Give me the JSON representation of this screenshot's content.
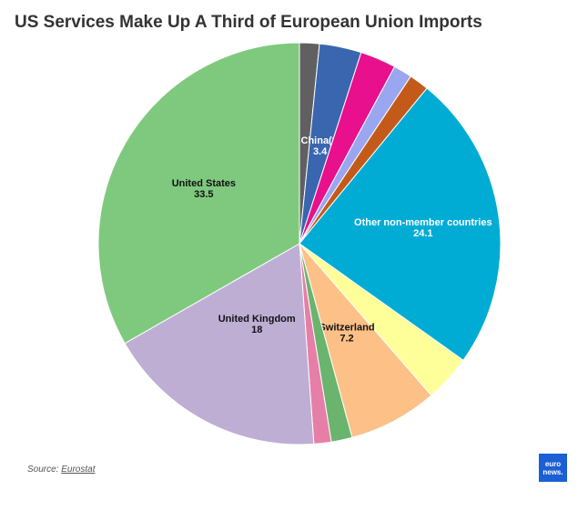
{
  "title": "US Services Make Up A Third of European Union Imports",
  "source": {
    "label": "Source:",
    "link_text": "Eurostat"
  },
  "logo": {
    "line1": "euro",
    "line2": "news."
  },
  "chart_data": {
    "type": "pie",
    "title": "US Services Make Up A Third of European Union Imports",
    "slices": [
      {
        "value": 1.6,
        "color": "#606060",
        "label": "",
        "value_label": ""
      },
      {
        "value": 3.4,
        "color": "#3a66b0",
        "label": "China(*)",
        "value_label": "3.4",
        "label_color": "#ffffff"
      },
      {
        "value": 2.9,
        "color": "#e8108c",
        "label": "",
        "value_label": ""
      },
      {
        "value": 1.5,
        "color": "#9aa6f0",
        "label": "",
        "value_label": ""
      },
      {
        "value": 1.6,
        "color": "#c45a1a",
        "label": "",
        "value_label": ""
      },
      {
        "value": 24.1,
        "color": "#00acd4",
        "label": "Other non-member countries",
        "value_label": "24.1",
        "label_color": "#ffffff"
      },
      {
        "value": 3.8,
        "color": "#ffff99",
        "label": "",
        "value_label": ""
      },
      {
        "value": 7.2,
        "color": "#fdc087",
        "label": "Switzerland",
        "value_label": "7.2",
        "label_color": "#111111"
      },
      {
        "value": 1.7,
        "color": "#6ab46e",
        "label": "",
        "value_label": ""
      },
      {
        "value": 1.4,
        "color": "#e67fa8",
        "label": "",
        "value_label": ""
      },
      {
        "value": 18,
        "color": "#beaed4",
        "label": "United Kingdom",
        "value_label": "18",
        "label_color": "#111111"
      },
      {
        "value": 33.5,
        "color": "#7fc97f",
        "label": "United States",
        "value_label": "33.5",
        "label_color": "#111111"
      }
    ]
  }
}
